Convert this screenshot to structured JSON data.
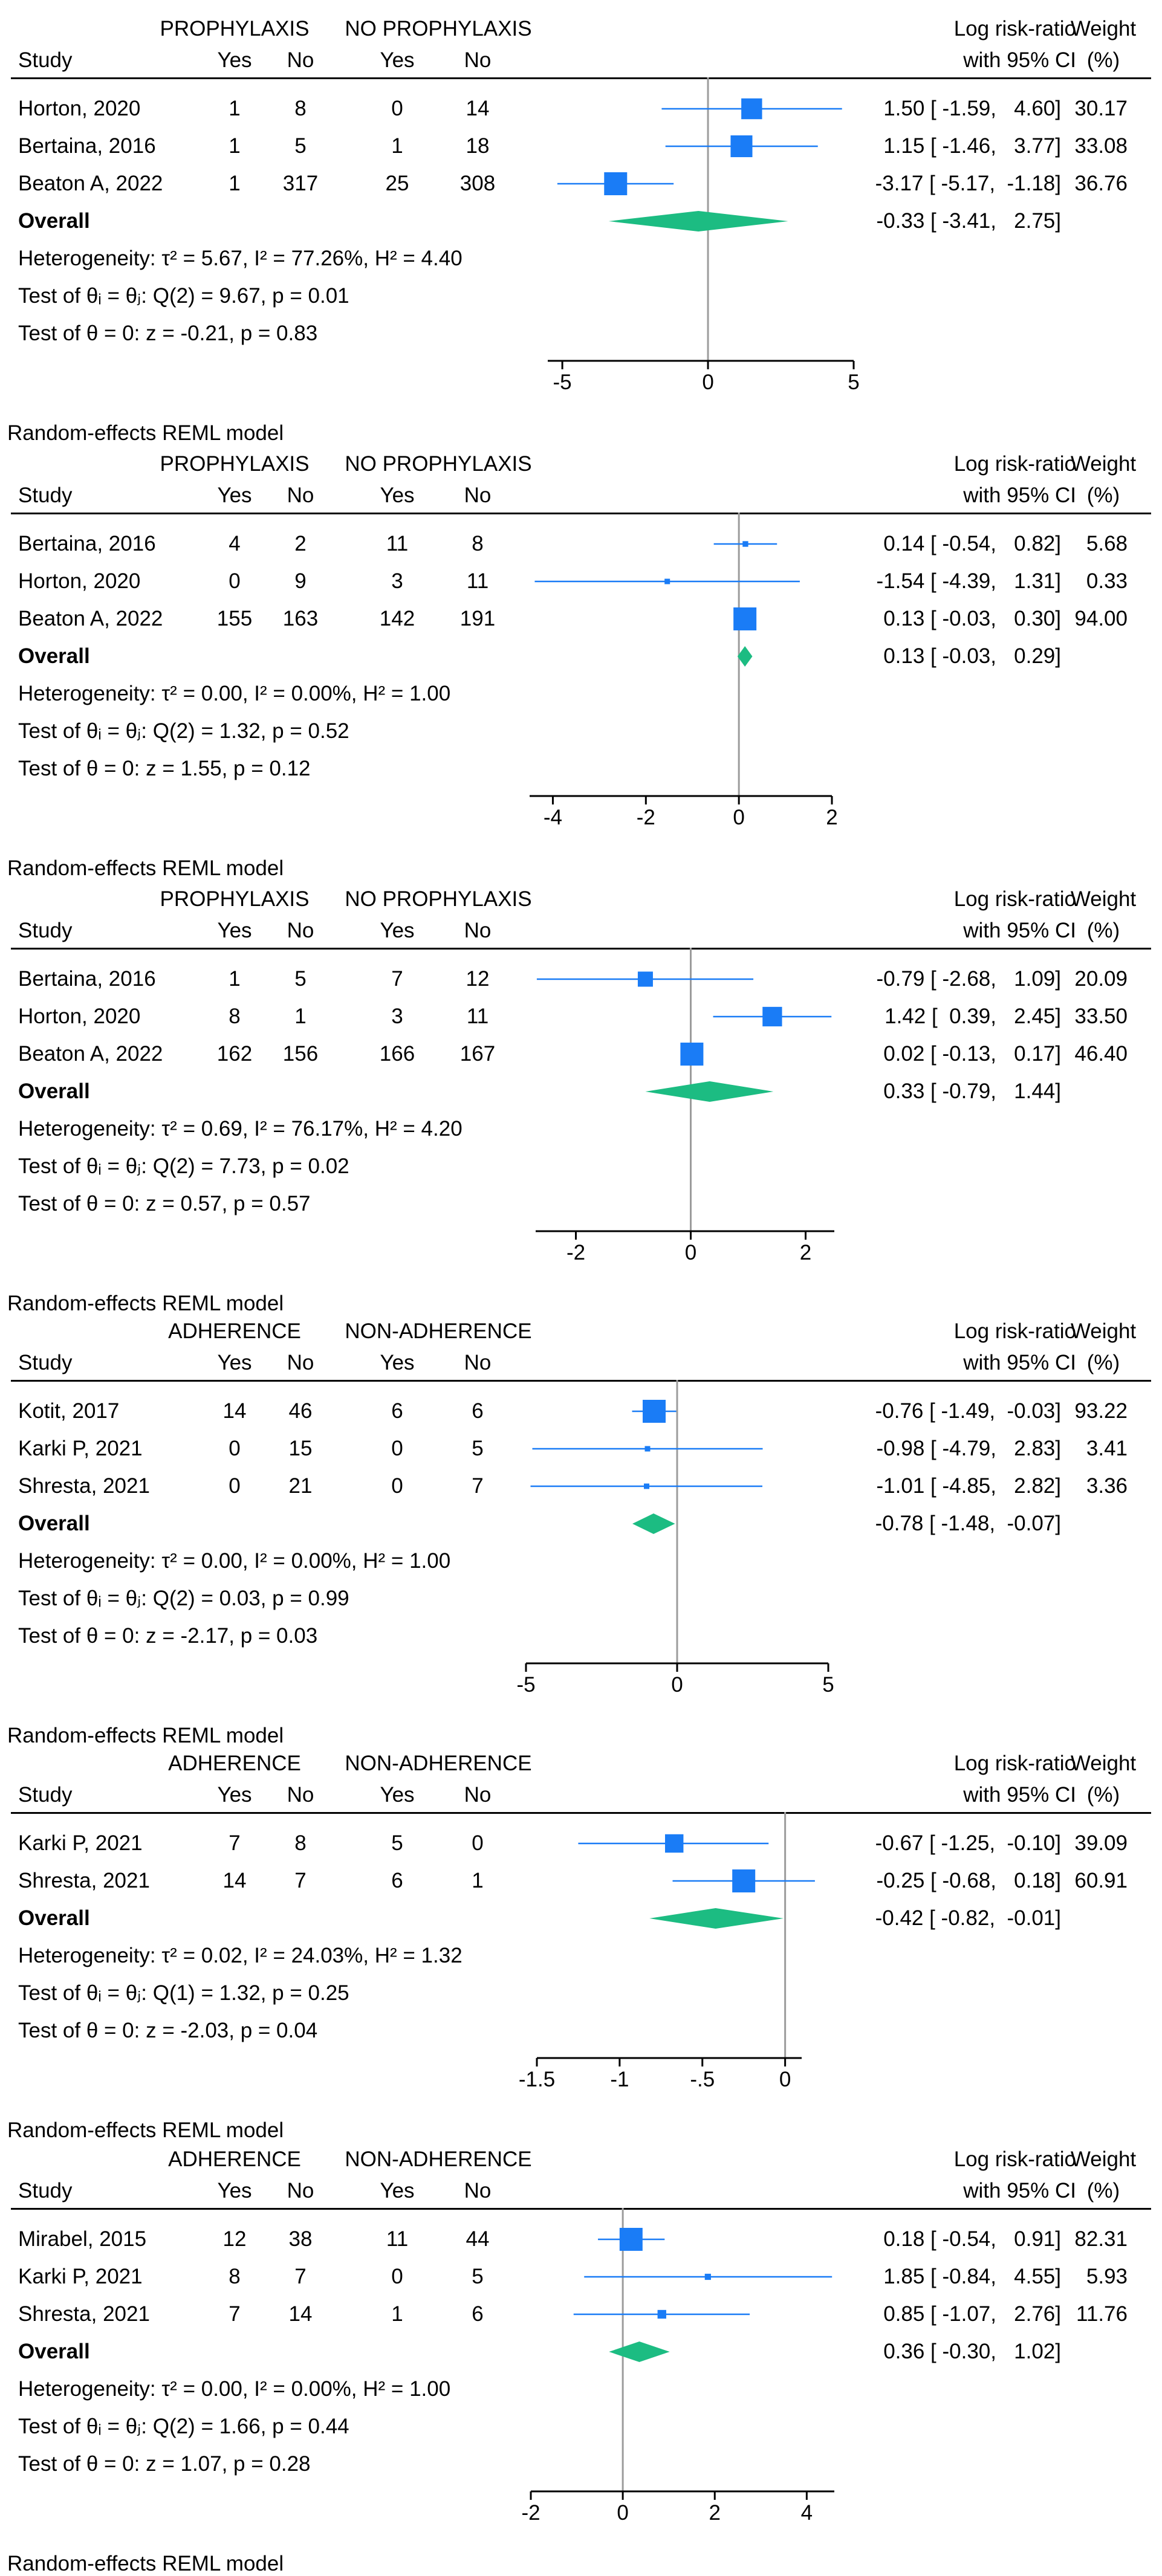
{
  "colors": {
    "marker": "#1a7cf6",
    "diamond": "#1cbc82",
    "axis": "#000000",
    "refline": "#9c9c9c"
  },
  "common_headers": {
    "study": "Study",
    "yes": "Yes",
    "no": "No",
    "effect_line1": "Log risk-ratio",
    "effect_line2": "with 95% CI",
    "weight_line1": "Weight",
    "weight_line2": "(%)"
  },
  "caption": "Random-effects REML model",
  "chart_data": [
    {
      "type": "forest",
      "group1_label": "PROPHYLAXIS",
      "group2_label": "NO PROPHYLAXIS",
      "xlim": [
        -5.5,
        5
      ],
      "ticks": [
        -5,
        0,
        5
      ],
      "tick_labels": [
        "-5",
        "0",
        "5"
      ],
      "studies": [
        {
          "name": "Horton, 2020",
          "g1_yes": "1",
          "g1_no": "8",
          "g2_yes": "0",
          "g2_no": "14",
          "est": 1.5,
          "lo": -1.59,
          "hi": 4.6,
          "weight": 30.17,
          "ci_text": "1.50 [ -1.59,   4.60]",
          "weight_text": "30.17"
        },
        {
          "name": "Bertaina, 2016",
          "g1_yes": "1",
          "g1_no": "5",
          "g2_yes": "1",
          "g2_no": "18",
          "est": 1.15,
          "lo": -1.46,
          "hi": 3.77,
          "weight": 33.08,
          "ci_text": "1.15 [ -1.46,   3.77]",
          "weight_text": "33.08"
        },
        {
          "name": "Beaton A, 2022",
          "g1_yes": "1",
          "g1_no": "317",
          "g2_yes": "25",
          "g2_no": "308",
          "est": -3.17,
          "lo": -5.17,
          "hi": -1.18,
          "weight": 36.76,
          "ci_text": "-3.17 [ -5.17,  -1.18]",
          "weight_text": "36.76"
        }
      ],
      "overall": {
        "label": "Overall",
        "est": -0.33,
        "lo": -3.41,
        "hi": 2.75,
        "ci_text": "-0.33 [ -3.41,   2.75]"
      },
      "stats": {
        "heterogeneity": "Heterogeneity: τ² = 5.67, I² = 77.26%, H² = 4.40",
        "test_theta_i": "Test of θᵢ = θⱼ: Q(2) = 9.67, p = 0.01",
        "test_theta_0": "Test of θ = 0: z = -0.21, p = 0.83"
      }
    },
    {
      "type": "forest",
      "group1_label": "PROPHYLAXIS",
      "group2_label": "NO PROPHYLAXIS",
      "xlim": [
        -4.5,
        2
      ],
      "ticks": [
        -4,
        -2,
        0,
        2
      ],
      "tick_labels": [
        "-4",
        "-2",
        "0",
        "2"
      ],
      "studies": [
        {
          "name": "Bertaina, 2016",
          "g1_yes": "4",
          "g1_no": "2",
          "g2_yes": "11",
          "g2_no": "8",
          "est": 0.14,
          "lo": -0.54,
          "hi": 0.82,
          "weight": 5.68,
          "ci_text": "0.14 [ -0.54,   0.82]",
          "weight_text": "5.68"
        },
        {
          "name": "Horton, 2020",
          "g1_yes": "0",
          "g1_no": "9",
          "g2_yes": "3",
          "g2_no": "11",
          "est": -1.54,
          "lo": -4.39,
          "hi": 1.31,
          "weight": 0.33,
          "ci_text": "-1.54 [ -4.39,   1.31]",
          "weight_text": "0.33"
        },
        {
          "name": "Beaton A, 2022",
          "g1_yes": "155",
          "g1_no": "163",
          "g2_yes": "142",
          "g2_no": "191",
          "est": 0.13,
          "lo": -0.03,
          "hi": 0.3,
          "weight": 94.0,
          "ci_text": "0.13 [ -0.03,   0.30]",
          "weight_text": "94.00"
        }
      ],
      "overall": {
        "label": "Overall",
        "est": 0.13,
        "lo": -0.03,
        "hi": 0.29,
        "ci_text": "0.13 [ -0.03,   0.29]"
      },
      "stats": {
        "heterogeneity": "Heterogeneity: τ² = 0.00, I² = 0.00%, H² = 1.00",
        "test_theta_i": "Test of θᵢ = θⱼ: Q(2) = 1.32, p = 0.52",
        "test_theta_0": "Test of θ = 0: z = 1.55, p = 0.12"
      }
    },
    {
      "type": "forest",
      "group1_label": "PROPHYLAXIS",
      "group2_label": "NO PROPHYLAXIS",
      "xlim": [
        -2.7,
        2.5
      ],
      "ticks": [
        -2,
        0,
        2
      ],
      "tick_labels": [
        "-2",
        "0",
        "2"
      ],
      "studies": [
        {
          "name": "Bertaina, 2016",
          "g1_yes": "1",
          "g1_no": "5",
          "g2_yes": "7",
          "g2_no": "12",
          "est": -0.79,
          "lo": -2.68,
          "hi": 1.09,
          "weight": 20.09,
          "ci_text": "-0.79 [ -2.68,   1.09]",
          "weight_text": "20.09"
        },
        {
          "name": "Horton, 2020",
          "g1_yes": "8",
          "g1_no": "1",
          "g2_yes": "3",
          "g2_no": "11",
          "est": 1.42,
          "lo": 0.39,
          "hi": 2.45,
          "weight": 33.5,
          "ci_text": "1.42 [  0.39,   2.45]",
          "weight_text": "33.50"
        },
        {
          "name": "Beaton A, 2022",
          "g1_yes": "162",
          "g1_no": "156",
          "g2_yes": "166",
          "g2_no": "167",
          "est": 0.02,
          "lo": -0.13,
          "hi": 0.17,
          "weight": 46.4,
          "ci_text": "0.02 [ -0.13,   0.17]",
          "weight_text": "46.40"
        }
      ],
      "overall": {
        "label": "Overall",
        "est": 0.33,
        "lo": -0.79,
        "hi": 1.44,
        "ci_text": "0.33 [ -0.79,   1.44]"
      },
      "stats": {
        "heterogeneity": "Heterogeneity: τ² = 0.69, I² = 76.17%, H² = 4.20",
        "test_theta_i": "Test of θᵢ = θⱼ: Q(2) = 7.73, p = 0.02",
        "test_theta_0": "Test of θ = 0: z = 0.57, p = 0.57"
      }
    },
    {
      "type": "forest",
      "group1_label": "ADHERENCE",
      "group2_label": "NON-ADHERENCE",
      "xlim": [
        -5,
        5
      ],
      "ticks": [
        -5,
        0,
        5
      ],
      "tick_labels": [
        "-5",
        "0",
        "5"
      ],
      "studies": [
        {
          "name": "Kotit, 2017",
          "g1_yes": "14",
          "g1_no": "46",
          "g2_yes": "6",
          "g2_no": "6",
          "est": -0.76,
          "lo": -1.49,
          "hi": -0.03,
          "weight": 93.22,
          "ci_text": "-0.76 [ -1.49,  -0.03]",
          "weight_text": "93.22"
        },
        {
          "name": "Karki P, 2021",
          "g1_yes": "0",
          "g1_no": "15",
          "g2_yes": "0",
          "g2_no": "5",
          "est": -0.98,
          "lo": -4.79,
          "hi": 2.83,
          "weight": 3.41,
          "ci_text": "-0.98 [ -4.79,   2.83]",
          "weight_text": "3.41"
        },
        {
          "name": "Shresta, 2021",
          "g1_yes": "0",
          "g1_no": "21",
          "g2_yes": "0",
          "g2_no": "7",
          "est": -1.01,
          "lo": -4.85,
          "hi": 2.82,
          "weight": 3.36,
          "ci_text": "-1.01 [ -4.85,   2.82]",
          "weight_text": "3.36"
        }
      ],
      "overall": {
        "label": "Overall",
        "est": -0.78,
        "lo": -1.48,
        "hi": -0.07,
        "ci_text": "-0.78 [ -1.48,  -0.07]"
      },
      "stats": {
        "heterogeneity": "Heterogeneity: τ² = 0.00, I² = 0.00%, H² = 1.00",
        "test_theta_i": "Test of θᵢ = θⱼ: Q(2) = 0.03, p = 0.99",
        "test_theta_0": "Test of θ = 0: z = -2.17, p = 0.03"
      }
    },
    {
      "type": "forest",
      "group1_label": "ADHERENCE",
      "group2_label": "NON-ADHERENCE",
      "xlim": [
        -1.5,
        0.1
      ],
      "ticks": [
        -1.5,
        -1,
        -0.5,
        0
      ],
      "tick_labels": [
        "-1.5",
        "-1",
        "-.5",
        "0"
      ],
      "studies": [
        {
          "name": "Karki P, 2021",
          "g1_yes": "7",
          "g1_no": "8",
          "g2_yes": "5",
          "g2_no": "0",
          "est": -0.67,
          "lo": -1.25,
          "hi": -0.1,
          "weight": 39.09,
          "ci_text": "-0.67 [ -1.25,  -0.10]",
          "weight_text": "39.09"
        },
        {
          "name": "Shresta, 2021",
          "g1_yes": "14",
          "g1_no": "7",
          "g2_yes": "6",
          "g2_no": "1",
          "est": -0.25,
          "lo": -0.68,
          "hi": 0.18,
          "weight": 60.91,
          "ci_text": "-0.25 [ -0.68,   0.18]",
          "weight_text": "60.91"
        }
      ],
      "overall": {
        "label": "Overall",
        "est": -0.42,
        "lo": -0.82,
        "hi": -0.01,
        "ci_text": "-0.42 [ -0.82,  -0.01]"
      },
      "stats": {
        "heterogeneity": "Heterogeneity: τ² = 0.02, I² = 24.03%, H² = 1.32",
        "test_theta_i": "Test of θᵢ = θⱼ: Q(1) = 1.32, p = 0.25",
        "test_theta_0": "Test of θ = 0: z = -2.03, p = 0.04"
      }
    },
    {
      "type": "forest",
      "group1_label": "ADHERENCE",
      "group2_label": "NON-ADHERENCE",
      "xlim": [
        -2,
        4.6
      ],
      "ticks": [
        -2,
        0,
        2,
        4
      ],
      "tick_labels": [
        "-2",
        "0",
        "2",
        "4"
      ],
      "studies": [
        {
          "name": "Mirabel, 2015",
          "g1_yes": "12",
          "g1_no": "38",
          "g2_yes": "11",
          "g2_no": "44",
          "est": 0.18,
          "lo": -0.54,
          "hi": 0.91,
          "weight": 82.31,
          "ci_text": "0.18 [ -0.54,   0.91]",
          "weight_text": "82.31"
        },
        {
          "name": "Karki P, 2021",
          "g1_yes": "8",
          "g1_no": "7",
          "g2_yes": "0",
          "g2_no": "5",
          "est": 1.85,
          "lo": -0.84,
          "hi": 4.55,
          "weight": 5.93,
          "ci_text": "1.85 [ -0.84,   4.55]",
          "weight_text": "5.93"
        },
        {
          "name": "Shresta, 2021",
          "g1_yes": "7",
          "g1_no": "14",
          "g2_yes": "1",
          "g2_no": "6",
          "est": 0.85,
          "lo": -1.07,
          "hi": 2.76,
          "weight": 11.76,
          "ci_text": "0.85 [ -1.07,   2.76]",
          "weight_text": "11.76"
        }
      ],
      "overall": {
        "label": "Overall",
        "est": 0.36,
        "lo": -0.3,
        "hi": 1.02,
        "ci_text": "0.36 [ -0.30,   1.02]"
      },
      "stats": {
        "heterogeneity": "Heterogeneity: τ² = 0.00, I² = 0.00%, H² = 1.00",
        "test_theta_i": "Test of θᵢ = θⱼ: Q(2) = 1.66, p = 0.44",
        "test_theta_0": "Test of θ = 0: z = 1.07, p = 0.28"
      }
    }
  ]
}
